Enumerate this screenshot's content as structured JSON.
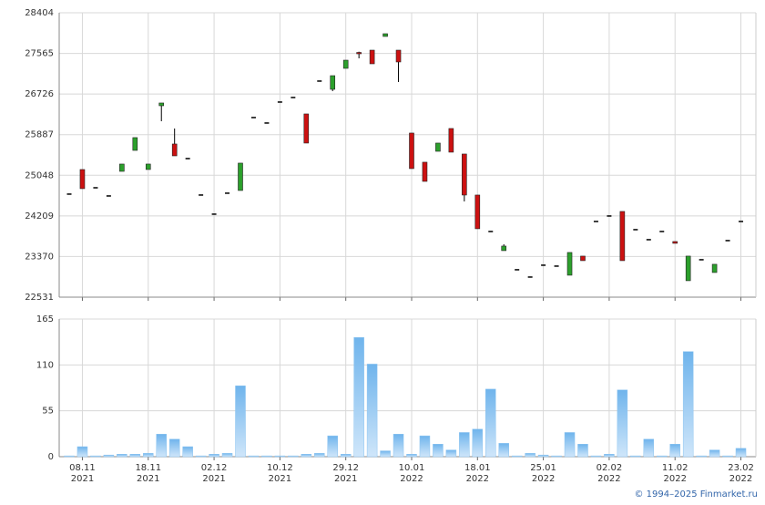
{
  "chart_data": {
    "type": "candlestick",
    "categories": [
      null,
      "08.11",
      null,
      null,
      null,
      null,
      "18.11",
      null,
      null,
      null,
      null,
      "02.12",
      null,
      null,
      null,
      null,
      "10.12",
      null,
      null,
      null,
      null,
      "29.12",
      null,
      null,
      null,
      null,
      "10.01",
      null,
      null,
      null,
      null,
      "18.01",
      null,
      null,
      null,
      null,
      "25.01",
      null,
      null,
      null,
      null,
      "02.02",
      null,
      null,
      null,
      null,
      "11.02",
      null,
      null,
      null,
      null,
      "23.02"
    ],
    "category_years": [
      null,
      "2021",
      null,
      null,
      null,
      null,
      "2021",
      null,
      null,
      null,
      null,
      "2021",
      null,
      null,
      null,
      null,
      "2021",
      null,
      null,
      null,
      null,
      "2021",
      null,
      null,
      null,
      null,
      "2022",
      null,
      null,
      null,
      null,
      "2022",
      null,
      null,
      null,
      null,
      "2022",
      null,
      null,
      null,
      null,
      "2022",
      null,
      null,
      null,
      null,
      "2022",
      null,
      null,
      null,
      null,
      "2022"
    ],
    "open": [
      24659,
      25167,
      24790,
      24621,
      25129,
      25562,
      25167,
      26484,
      25694,
      25393,
      24640,
      24245,
      24678,
      24734,
      26240,
      26127,
      26560,
      26654,
      26315,
      26993,
      26823,
      27256,
      27585,
      27632,
      27915,
      27632,
      25920,
      25318,
      25543,
      26014,
      25487,
      24640,
      23887,
      23492,
      23097,
      22946,
      23191,
      23172,
      22984,
      23379,
      24094,
      24207,
      24301,
      23925,
      23718,
      23887,
      23680,
      22871,
      23304,
      23040,
      23699,
      24094
    ],
    "high": [
      24659,
      25167,
      24790,
      24621,
      25280,
      25826,
      25280,
      26541,
      26014,
      25393,
      24640,
      24245,
      24678,
      25299,
      26240,
      26127,
      26560,
      26654,
      26315,
      26993,
      27105,
      27425,
      27600,
      27632,
      27971,
      27632,
      25920,
      25318,
      25713,
      26014,
      25487,
      24640,
      23887,
      23624,
      23097,
      22946,
      23191,
      23172,
      23454,
      23379,
      24094,
      24207,
      24301,
      23925,
      23718,
      23887,
      23680,
      23379,
      23304,
      23210,
      23699,
      24094
    ],
    "low": [
      24659,
      24772,
      24790,
      24621,
      25129,
      25562,
      25167,
      26164,
      25449,
      25393,
      24640,
      24245,
      24678,
      24734,
      26240,
      26127,
      26560,
      26654,
      25713,
      26993,
      26786,
      27256,
      27463,
      27350,
      27915,
      26974,
      25186,
      24922,
      25543,
      25525,
      24508,
      23944,
      23887,
      23492,
      23097,
      22946,
      23191,
      23172,
      22984,
      23285,
      24094,
      24207,
      23285,
      23925,
      23718,
      23887,
      23643,
      22871,
      23304,
      23040,
      23699,
      24094
    ],
    "close": [
      24659,
      24772,
      24790,
      24621,
      25280,
      25826,
      25280,
      26541,
      25449,
      25393,
      24640,
      24245,
      24678,
      25299,
      26240,
      26127,
      26560,
      26654,
      25713,
      26993,
      27105,
      27425,
      27566,
      27350,
      27971,
      27388,
      25186,
      24922,
      25713,
      25525,
      24640,
      23944,
      23887,
      23586,
      23097,
      22946,
      23191,
      23172,
      23454,
      23285,
      24094,
      24207,
      23285,
      23925,
      23718,
      23887,
      23643,
      23379,
      23304,
      23210,
      23699,
      24094
    ],
    "up_color": "#2ca02c",
    "down_color": "#cc1111",
    "ylim": [
      22531,
      28404
    ],
    "yticks": [
      22531,
      23370,
      24209,
      25048,
      25887,
      26726,
      27565,
      28404
    ],
    "volume": {
      "values": [
        1,
        12,
        1,
        2,
        3,
        3,
        4,
        27,
        21,
        12,
        1,
        3,
        4,
        85,
        1,
        1,
        1,
        1,
        3,
        4,
        25,
        3,
        143,
        111,
        7,
        27,
        3,
        25,
        15,
        8,
        29,
        33,
        81,
        16,
        1,
        4,
        2,
        1,
        29,
        15,
        1,
        3,
        80,
        1,
        21,
        1,
        15,
        126,
        1,
        8,
        1,
        10
      ],
      "color": "#8cc4f0",
      "ylim": [
        0,
        165
      ],
      "yticks": [
        0,
        55,
        110,
        165
      ]
    },
    "grid": true,
    "footer": "© 1994–2025 Finmarket.ru"
  }
}
